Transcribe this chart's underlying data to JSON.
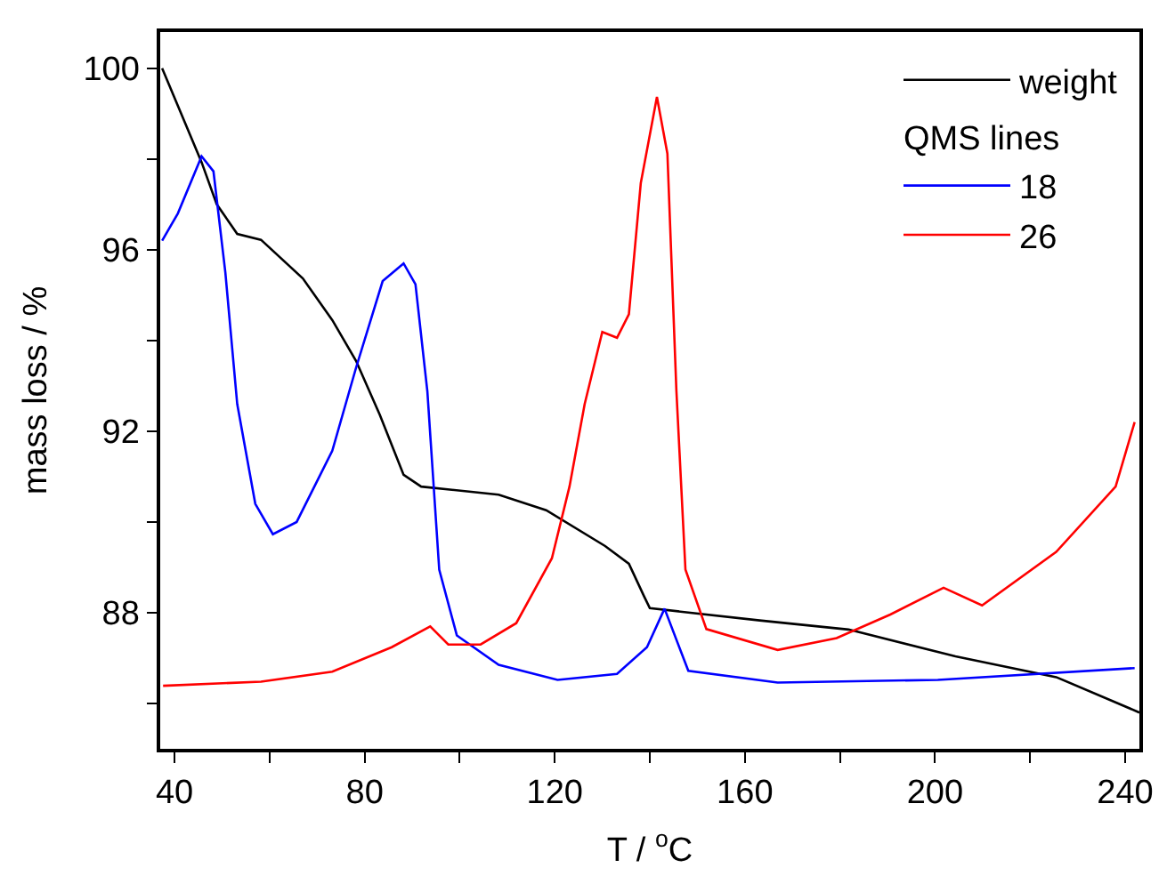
{
  "chart_data": {
    "type": "line",
    "xlabel": "T / $^{o}$C",
    "ylabel": "mass loss / %",
    "xlim": [
      37,
      243
    ],
    "ylim": [
      85,
      100.8
    ],
    "xticks": [
      40,
      {
        "value": 60,
        "label": null
      },
      80,
      {
        "value": 100,
        "label": null
      },
      120,
      {
        "value": 140,
        "label": null
      },
      160,
      {
        "value": 180,
        "label": null
      },
      200,
      {
        "value": 220,
        "label": null
      },
      240
    ],
    "yticks": [
      {
        "value": 86,
        "label": null
      },
      88,
      {
        "value": 90,
        "label": null
      },
      92,
      {
        "value": 94,
        "label": null
      },
      96,
      {
        "value": 98,
        "label": null
      },
      100
    ],
    "legend": "top right",
    "annotations": [
      "QMS lines"
    ],
    "series": [
      {
        "name": "weight",
        "color": "#000000",
        "x": [
          37.4,
          45.7,
          48.9,
          53.2,
          58.2,
          67,
          73.2,
          78.2,
          83.2,
          88.2,
          91.9,
          108.2,
          118.2,
          130.6,
          135.6,
          138.8,
          140,
          163.1,
          181.8,
          204.3,
          225.5,
          243
        ],
        "values": [
          100,
          97.93,
          97.0,
          96.35,
          96.22,
          95.37,
          94.45,
          93.55,
          92.36,
          91.04,
          90.78,
          90.6,
          90.26,
          89.47,
          89.08,
          88.36,
          88.1,
          87.83,
          87.63,
          87.04,
          86.58,
          85.8
        ]
      },
      {
        "name": "18",
        "color": "#0000ff",
        "x": [
          37.4,
          40.7,
          45.7,
          48.2,
          50.7,
          53.2,
          57,
          60.7,
          65.7,
          73.2,
          78.2,
          83.8,
          88.2,
          90.7,
          93.2,
          95.7,
          99.4,
          108.2,
          120.6,
          133.1,
          139.4,
          143.1,
          148.1,
          166.9,
          200.6,
          242
        ],
        "values": [
          96.2,
          96.8,
          98.06,
          97.73,
          95.5,
          92.6,
          90.4,
          89.73,
          90.0,
          91.57,
          93.4,
          95.31,
          95.7,
          95.24,
          92.88,
          88.95,
          87.5,
          86.85,
          86.52,
          86.65,
          87.24,
          88.09,
          86.72,
          86.46,
          86.52,
          86.78
        ]
      },
      {
        "name": "26",
        "color": "#ff0000",
        "x": [
          37.6,
          58.2,
          73.2,
          85.7,
          93.8,
          97.6,
          104.4,
          111.9,
          119.4,
          123.1,
          126.3,
          130,
          133.1,
          135.6,
          138.1,
          141.5,
          143.7,
          145.6,
          147.5,
          151.9,
          166.9,
          179.3,
          190.6,
          201.8,
          209.9,
          225.5,
          238,
          242
        ],
        "values": [
          86.39,
          86.48,
          86.7,
          87.24,
          87.7,
          87.3,
          87.3,
          87.77,
          89.2,
          90.78,
          92.6,
          94.19,
          94.06,
          94.58,
          97.47,
          99.37,
          98.12,
          92.88,
          88.95,
          87.64,
          87.18,
          87.44,
          87.96,
          88.55,
          88.16,
          89.34,
          90.78,
          92.2
        ]
      }
    ]
  }
}
